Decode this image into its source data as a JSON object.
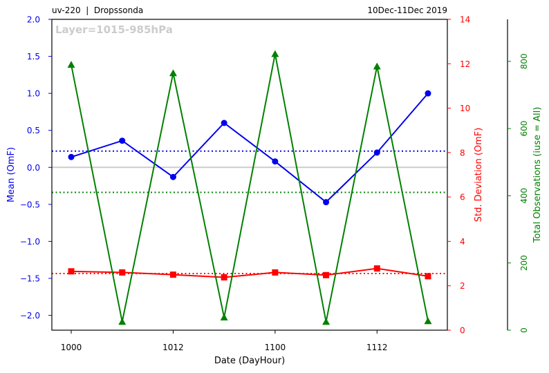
{
  "header": {
    "left_title": "uv-220  |  Dropssonda",
    "right_title": "10Dec-11Dec 2019",
    "layer_label": "Layer=1015-985hPa"
  },
  "colors": {
    "mean": "#0000ee",
    "std": "#ff0000",
    "count": "#008000",
    "zero_line": "#cccccc",
    "axis": "#000000"
  },
  "chart_data": {
    "type": "line",
    "xlabel": "Date (DayHour)",
    "x_ticks": [
      "1000",
      "1012",
      "1100",
      "1112"
    ],
    "x": [
      "1000",
      "1006",
      "1012",
      "1018",
      "1100",
      "1106",
      "1112",
      "1118"
    ],
    "xlim": [
      -0.38,
      7.38
    ],
    "y_axes": {
      "left": {
        "label": "Mean (OmF)",
        "lim": [
          -2.2,
          2.0
        ],
        "ticks": [
          "2.0",
          "1.5",
          "1.0",
          "0.5",
          "0.0",
          "−0.5",
          "−1.0",
          "−1.5",
          "−2.0"
        ],
        "tick_values": [
          2.0,
          1.5,
          1.0,
          0.5,
          0.0,
          -0.5,
          -1.0,
          -1.5,
          -2.0
        ]
      },
      "right1": {
        "label": "Std. Deviation (OmF)",
        "lim": [
          0,
          14
        ],
        "ticks": [
          "14",
          "12",
          "10",
          "8",
          "6",
          "4",
          "2",
          "0"
        ],
        "tick_values": [
          14,
          12,
          10,
          8,
          6,
          4,
          2,
          0
        ]
      },
      "right2": {
        "label": "Total Observations (iuse = All)",
        "lim": [
          0,
          925
        ],
        "ticks": [
          "800",
          "600",
          "400",
          "200",
          "0"
        ],
        "tick_values": [
          800,
          600,
          400,
          200,
          0
        ]
      }
    },
    "series": [
      {
        "key": "mean",
        "axis": "left",
        "marker": "circle",
        "values": [
          0.14,
          0.36,
          -0.13,
          0.6,
          0.08,
          -0.47,
          0.2,
          1.0
        ]
      },
      {
        "key": "std",
        "axis": "right1",
        "marker": "square",
        "values": [
          2.65,
          2.6,
          2.5,
          2.38,
          2.6,
          2.48,
          2.78,
          2.43
        ]
      },
      {
        "key": "count",
        "axis": "right2",
        "marker": "triangle",
        "values": [
          790,
          25,
          765,
          38,
          822,
          25,
          785,
          27
        ]
      }
    ],
    "reference_lines": [
      {
        "key": "mean_avg",
        "axis": "left",
        "value": 0.22
      },
      {
        "key": "std_avg",
        "axis": "right1",
        "value": 2.55
      },
      {
        "key": "count_avg",
        "axis": "right2",
        "value": 410
      }
    ],
    "zero_line": {
      "axis": "left",
      "value": 0
    },
    "grid": false
  }
}
